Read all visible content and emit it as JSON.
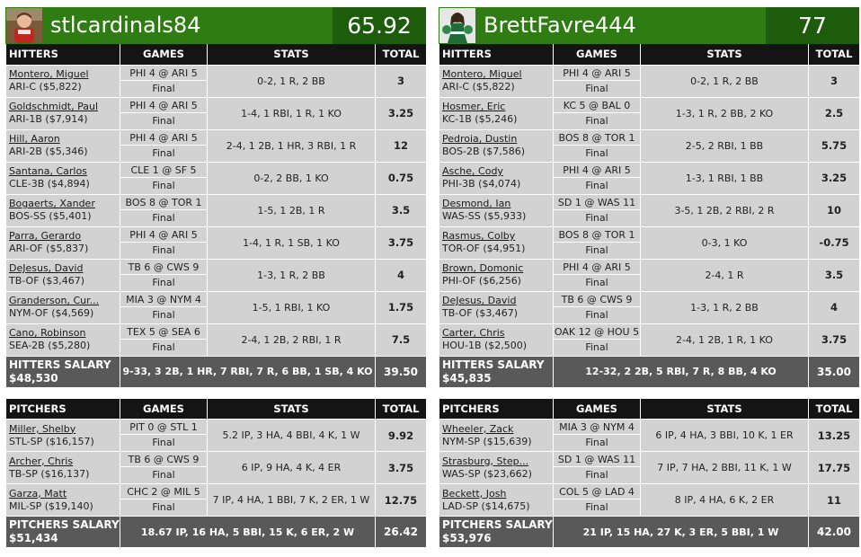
{
  "left": {
    "username": "stlcardinals84",
    "score": "65.92",
    "hitters_header": {
      "c1": "HITTERS",
      "c2": "GAMES",
      "c3": "STATS",
      "c4": "TOTAL"
    },
    "hitters": [
      {
        "name": "Montero, Miguel",
        "info": "ARI-C ($5,822)",
        "game": "PHI 4 @ ARI 5",
        "status": "Final",
        "stats": "0-2, 1 R, 2 BB",
        "total": "3"
      },
      {
        "name": "Goldschmidt, Paul",
        "info": "ARI-1B ($7,914)",
        "game": "PHI 4 @ ARI 5",
        "status": "Final",
        "stats": "1-4, 1 RBI, 1 R, 1 KO",
        "total": "3.25"
      },
      {
        "name": "Hill, Aaron",
        "info": "ARI-2B ($5,346)",
        "game": "PHI 4 @ ARI 5",
        "status": "Final",
        "stats": "2-4, 1 2B, 1 HR, 3 RBI, 1 R",
        "total": "12"
      },
      {
        "name": "Santana, Carlos",
        "info": "CLE-3B ($4,894)",
        "game": "CLE 1 @ SF 5",
        "status": "Final",
        "stats": "0-2, 2 BB, 1 KO",
        "total": "0.75"
      },
      {
        "name": "Bogaerts, Xander",
        "info": "BOS-SS ($5,401)",
        "game": "BOS 8 @ TOR 1",
        "status": "Final",
        "stats": "1-5, 1 2B, 1 R",
        "total": "3.5"
      },
      {
        "name": "Parra, Gerardo",
        "info": "ARI-OF ($5,837)",
        "game": "PHI 4 @ ARI 5",
        "status": "Final",
        "stats": "1-4, 1 R, 1 SB, 1 KO",
        "total": "3.75"
      },
      {
        "name": "DeJesus, David",
        "info": "TB-OF ($3,467)",
        "game": "TB 6 @ CWS 9",
        "status": "Final",
        "stats": "1-3, 1 R, 2 BB",
        "total": "4"
      },
      {
        "name": "Granderson, Cur...",
        "info": "NYM-OF ($4,569)",
        "game": "MIA 3 @ NYM 4",
        "status": "Final",
        "stats": "1-5, 1 RBI, 1 KO",
        "total": "1.75"
      },
      {
        "name": "Cano, Robinson",
        "info": "SEA-2B ($5,280)",
        "game": "TEX 5 @ SEA 6",
        "status": "Final",
        "stats": "2-4, 1 2B, 2 RBI, 1 R",
        "total": "7.5"
      }
    ],
    "hitters_summary": {
      "label": "HITTERS SALARY",
      "salary": "$48,530",
      "stats": "9-33, 3 2B, 1 HR, 7 RBI, 7 R, 6 BB, 1 SB, 4 KO",
      "total": "39.50"
    },
    "pitchers_header": {
      "c1": "PITCHERS",
      "c2": "GAMES",
      "c3": "STATS",
      "c4": "TOTAL"
    },
    "pitchers": [
      {
        "name": "Miller, Shelby",
        "info": "STL-SP ($16,157)",
        "game": "PIT 0 @ STL 1",
        "status": "Final",
        "stats": "5.2 IP, 3 HA, 4 BBI, 4 K, 1 W",
        "total": "9.92"
      },
      {
        "name": "Archer, Chris",
        "info": "TB-SP ($16,137)",
        "game": "TB 6 @ CWS 9",
        "status": "Final",
        "stats": "6 IP, 9 HA, 4 K, 4 ER",
        "total": "3.75"
      },
      {
        "name": "Garza, Matt",
        "info": "MIL-SP ($19,140)",
        "game": "CHC 2 @ MIL 5",
        "status": "Final",
        "stats": "7 IP, 4 HA, 1 BBI, 7 K, 2 ER, 1 W",
        "total": "12.75"
      }
    ],
    "pitchers_summary": {
      "label": "PITCHERS SALARY",
      "salary": "$51,434",
      "stats": "18.67 IP, 16 HA, 5 BBI, 15 K, 6 ER, 2 W",
      "total": "26.42"
    }
  },
  "right": {
    "username": "BrettFavre444",
    "score": "77",
    "hitters_header": {
      "c1": "HITTERS",
      "c2": "GAMES",
      "c3": "STATS",
      "c4": "TOTAL"
    },
    "hitters": [
      {
        "name": "Montero, Miguel",
        "info": "ARI-C ($5,822)",
        "game": "PHI 4 @ ARI 5",
        "status": "Final",
        "stats": "0-2, 1 R, 2 BB",
        "total": "3"
      },
      {
        "name": "Hosmer, Eric",
        "info": "KC-1B ($5,246)",
        "game": "KC 5 @ BAL 0",
        "status": "Final",
        "stats": "1-3, 1 R, 2 BB, 2 KO",
        "total": "2.5"
      },
      {
        "name": "Pedroia, Dustin",
        "info": "BOS-2B ($7,586)",
        "game": "BOS 8 @ TOR 1",
        "status": "Final",
        "stats": "2-5, 2 RBI, 1 BB",
        "total": "5.75"
      },
      {
        "name": "Asche, Cody",
        "info": "PHI-3B ($4,074)",
        "game": "PHI 4 @ ARI 5",
        "status": "Final",
        "stats": "1-3, 1 RBI, 1 BB",
        "total": "3.25"
      },
      {
        "name": "Desmond, Ian",
        "info": "WAS-SS ($5,933)",
        "game": "SD 1 @ WAS 11",
        "status": "Final",
        "stats": "3-5, 1 2B, 2 RBI, 2 R",
        "total": "10"
      },
      {
        "name": "Rasmus, Colby",
        "info": "TOR-OF ($4,951)",
        "game": "BOS 8 @ TOR 1",
        "status": "Final",
        "stats": "0-3, 1 KO",
        "total": "-0.75"
      },
      {
        "name": "Brown, Domonic",
        "info": "PHI-OF ($6,256)",
        "game": "PHI 4 @ ARI 5",
        "status": "Final",
        "stats": "2-4, 1 R",
        "total": "3.5"
      },
      {
        "name": "DeJesus, David",
        "info": "TB-OF ($3,467)",
        "game": "TB 6 @ CWS 9",
        "status": "Final",
        "stats": "1-3, 1 R, 2 BB",
        "total": "4"
      },
      {
        "name": "Carter, Chris",
        "info": "HOU-1B ($2,500)",
        "game": "OAK 12 @ HOU 5",
        "status": "Final",
        "stats": "2-4, 1 2B, 1 R, 1 KO",
        "total": "3.75"
      }
    ],
    "hitters_summary": {
      "label": "HITTERS SALARY",
      "salary": "$45,835",
      "stats": "12-32, 2 2B, 5 RBI, 7 R, 8 BB, 4 KO",
      "total": "35.00"
    },
    "pitchers_header": {
      "c1": "PITCHERS",
      "c2": "GAMES",
      "c3": "STATS",
      "c4": "TOTAL"
    },
    "pitchers": [
      {
        "name": "Wheeler, Zack",
        "info": "NYM-SP ($15,639)",
        "game": "MIA 3 @ NYM 4",
        "status": "Final",
        "stats": "6 IP, 4 HA, 3 BBI, 10 K, 1 ER",
        "total": "13.25"
      },
      {
        "name": "Strasburg, Step...",
        "info": "WAS-SP ($23,662)",
        "game": "SD 1 @ WAS 11",
        "status": "Final",
        "stats": "7 IP, 7 HA, 2 BBI, 11 K, 1 W",
        "total": "17.75"
      },
      {
        "name": "Beckett, Josh",
        "info": "LAD-SP ($14,675)",
        "game": "COL 5 @ LAD 4",
        "status": "Final",
        "stats": "8 IP, 4 HA, 6 K, 2 ER",
        "total": "11"
      }
    ],
    "pitchers_summary": {
      "label": "PITCHERS SALARY",
      "salary": "$53,976",
      "stats": "21 IP, 15 HA, 27 K, 3 ER, 5 BBI, 1 W",
      "total": "42.00"
    }
  },
  "colors": {
    "header_green": "#2f7d12",
    "score_green": "#1d5c0a",
    "table_header": "#141414",
    "row_gray": "#d2d2d2",
    "summary_gray": "#595959"
  },
  "icons": {
    "left_avatar": "child-avatar-photo",
    "right_avatar": "cheerleader-avatar-photo"
  }
}
